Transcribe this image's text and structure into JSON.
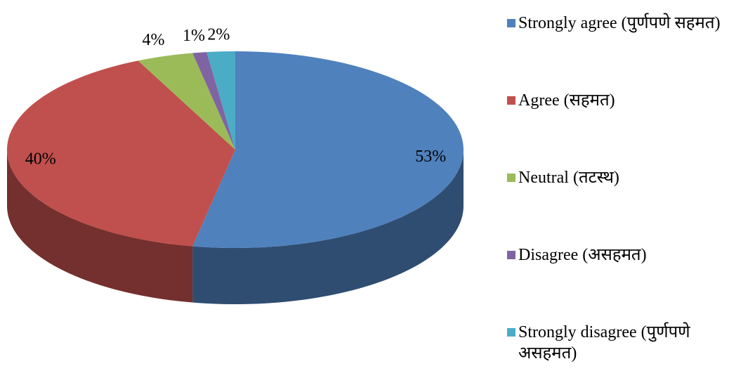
{
  "chart_data": {
    "type": "pie",
    "categories": [
      "Strongly agree (पुर्णपणे सहमत)",
      "Agree (सहमत)",
      "Neutral (तटस्थ)",
      "Disagree (असहमत)",
      "Strongly disagree (पुर्णपणे असहमत)"
    ],
    "values": [
      53,
      40,
      4,
      1,
      2
    ],
    "value_labels": [
      "53%",
      "40%",
      "4%",
      "1%",
      "2%"
    ],
    "colors": [
      "#4f81bd",
      "#c0504d",
      "#9bbb59",
      "#8064a2",
      "#4bacc6"
    ],
    "legend": "right"
  }
}
